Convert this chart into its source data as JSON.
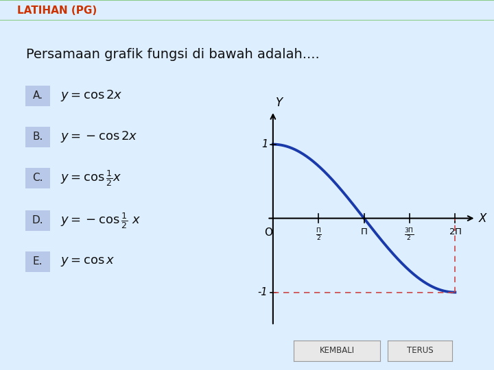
{
  "title_bar_text": "LATIHAN (PG)",
  "title_bar_bg": "#ccffcc",
  "title_bar_border": "#88cc88",
  "title_bar_text_color": "#cc3300",
  "bg_color": "#ddeeff",
  "question_text": "Persamaan grafik fungsi di bawah adalah....",
  "options": [
    {
      "label": "A.",
      "math": "y =  \\cos 2x"
    },
    {
      "label": "B.",
      "math": "y = -\\cos 2x"
    },
    {
      "label": "C.",
      "math": "y =  \\cos \\frac{1}{2}x"
    },
    {
      "label": "D.",
      "math": "y = -\\cos\\frac{1}{2}\\ x"
    },
    {
      "label": "E.",
      "math": "y =  \\cos x"
    }
  ],
  "option_bg": "#b8c8e8",
  "curve_color": "#1a3aaa",
  "curve_lw": 2.8,
  "dashed_color": "#cc4444",
  "x_label": "X",
  "y_label": "Y",
  "origin_label": "O",
  "kembali_text": "KEMBALI",
  "terus_text": "TERUS",
  "button_bg": "#e8e8e8",
  "button_border": "#999999"
}
